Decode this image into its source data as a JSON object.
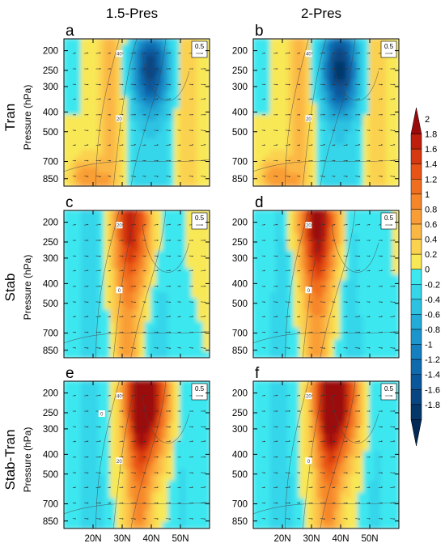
{
  "figure": {
    "column_titles": [
      "1.5-Pres",
      "2-Pres"
    ],
    "row_titles": [
      "Tran",
      "Stab",
      "Stab-Tran"
    ],
    "ylabel": "Pressure (hPa)",
    "y_ticks": [
      "200",
      "250",
      "300",
      "400",
      "500",
      "700",
      "850"
    ],
    "x_ticks": [
      "20N",
      "30N",
      "40N",
      "50N"
    ],
    "reference_vector_label": "0.5"
  },
  "chart_data": [
    {
      "type": "heatmap",
      "panel": "a",
      "row": "Tran",
      "column": "1.5-Pres",
      "contour_labels": [
        "40",
        "20"
      ],
      "features": [
        {
          "kind": "negative_max",
          "lat": 40,
          "pressure": 250,
          "value": -1.4
        },
        {
          "kind": "positive_band",
          "lat": 27,
          "value": 0.6
        },
        {
          "kind": "positive_band",
          "lat": 53,
          "value": 0.5
        },
        {
          "kind": "positive_low_level",
          "lat": 18,
          "pressure": 850,
          "value": 0.8
        }
      ]
    },
    {
      "type": "heatmap",
      "panel": "b",
      "row": "Tran",
      "column": "2-Pres",
      "contour_labels": [
        "40",
        "20"
      ],
      "features": [
        {
          "kind": "negative_max",
          "lat": 40,
          "pressure": 250,
          "value": -1.6
        },
        {
          "kind": "positive_band",
          "lat": 27,
          "value": 0.6
        },
        {
          "kind": "positive_band",
          "lat": 53,
          "value": 0.5
        },
        {
          "kind": "positive_low_level",
          "lat": 18,
          "pressure": 850,
          "value": 0.8
        }
      ]
    },
    {
      "type": "heatmap",
      "panel": "c",
      "row": "Stab",
      "column": "1.5-Pres",
      "contour_labels": [
        "20",
        "0"
      ],
      "features": [
        {
          "kind": "positive_max",
          "lat": 35,
          "pressure": 200,
          "value": 1.2
        },
        {
          "kind": "positive_band",
          "lat": 32,
          "value": 0.8
        },
        {
          "kind": "negative_band",
          "lat": 20,
          "value": -0.4
        },
        {
          "kind": "negative_band",
          "lat": 43,
          "value": -0.4
        }
      ]
    },
    {
      "type": "heatmap",
      "panel": "d",
      "row": "Stab",
      "column": "2-Pres",
      "contour_labels": [
        "20",
        "0"
      ],
      "features": [
        {
          "kind": "positive_max",
          "lat": 33,
          "pressure": 200,
          "value": 1.4
        },
        {
          "kind": "positive_band",
          "lat": 32,
          "value": 0.8
        },
        {
          "kind": "negative_band",
          "lat": 20,
          "value": -0.4
        },
        {
          "kind": "negative_band",
          "lat": 44,
          "value": -0.4
        }
      ]
    },
    {
      "type": "heatmap",
      "panel": "e",
      "row": "Stab-Tran",
      "column": "1.5-Pres",
      "contour_labels": [
        "40",
        "20",
        "0"
      ],
      "features": [
        {
          "kind": "positive_max",
          "lat": 39,
          "pressure": 200,
          "value": 2.0
        },
        {
          "kind": "positive_band",
          "lat": 36,
          "value": 1.0
        },
        {
          "kind": "negative_band",
          "lat": 20,
          "value": -0.4
        },
        {
          "kind": "negative_band",
          "lat": 51,
          "value": -0.3
        }
      ]
    },
    {
      "type": "heatmap",
      "panel": "f",
      "row": "Stab-Tran",
      "column": "2-Pres",
      "contour_labels": [
        "20",
        "0"
      ],
      "features": [
        {
          "kind": "positive_max",
          "lat": 39,
          "pressure": 200,
          "value": 2.0
        },
        {
          "kind": "positive_band",
          "lat": 36,
          "value": 1.0
        },
        {
          "kind": "negative_band",
          "lat": 20,
          "value": -0.4
        },
        {
          "kind": "negative_band",
          "lat": 52,
          "value": -0.3
        }
      ]
    }
  ],
  "colorbar": {
    "tick_labels": [
      "2",
      "1.8",
      "1.6",
      "1.4",
      "1.2",
      "1",
      "0.8",
      "0.6",
      "0.4",
      "0.2",
      "0",
      "-0.2",
      "-0.4",
      "-0.6",
      "-0.8",
      "-1",
      "-1.2",
      "-1.4",
      "-1.6",
      "-1.8"
    ],
    "colors": [
      "#9b0a0a",
      "#bd1f0c",
      "#d6380f",
      "#e85316",
      "#f06e1f",
      "#f6862a",
      "#f99e36",
      "#fbb744",
      "#fbd250",
      "#f8e856",
      "#3de7ef",
      "#36d5ea",
      "#2dc2e2",
      "#24acd8",
      "#1c95cd",
      "#157fbf",
      "#106aae",
      "#0b579b",
      "#074682",
      "#04376a",
      "#022a55"
    ]
  }
}
